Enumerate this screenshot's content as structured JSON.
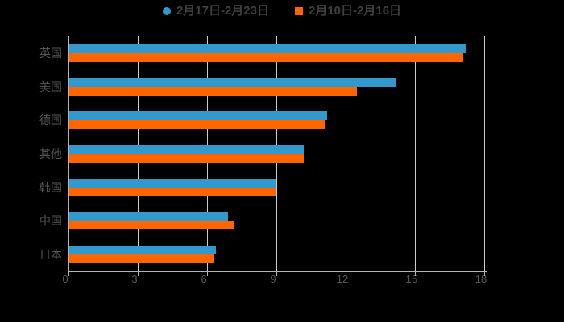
{
  "chart_data": {
    "type": "bar",
    "orientation": "horizontal",
    "title": "",
    "categories": [
      "英国",
      "美国",
      "德国",
      "其他",
      "韩国",
      "中国",
      "日本"
    ],
    "series": [
      {
        "name": "2月17日-2月23日",
        "color": "#3398cc",
        "marker": "circle",
        "values": [
          17.2,
          14.2,
          11.2,
          10.2,
          9.0,
          6.9,
          6.4
        ]
      },
      {
        "name": "2月10日-2月16日",
        "color": "#ff6600",
        "marker": "square",
        "values": [
          17.1,
          12.5,
          11.1,
          10.2,
          9.0,
          7.2,
          6.3
        ]
      }
    ],
    "xlabel": "",
    "ylabel": "",
    "x_axis": {
      "min": 0,
      "max": 18,
      "tick_step": 3,
      "tick_labels": [
        "0",
        "3",
        "6",
        "9",
        "12",
        "15",
        "18"
      ]
    },
    "grid": true,
    "legend_position": "top",
    "background": "#000000",
    "colors": {
      "gridline": "#cccccc",
      "axis_line": "#b5b5b5",
      "axis_label": "#565656",
      "legend_text": "#3f3f3f"
    }
  }
}
